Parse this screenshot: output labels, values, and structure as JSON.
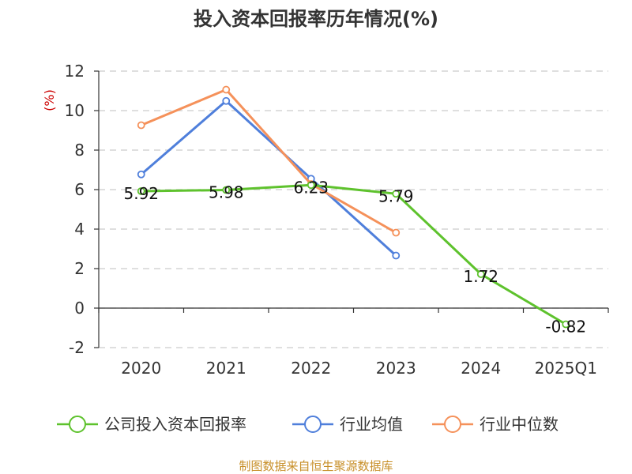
{
  "chart_data": {
    "type": "line",
    "title": "投入资本回报率历年情况(%)",
    "ylabel": "(%)",
    "categories": [
      "2020",
      "2021",
      "2022",
      "2023",
      "2024",
      "2025Q1"
    ],
    "yticks": [
      "12",
      "10",
      "8",
      "6",
      "4",
      "2",
      "0",
      "-2"
    ],
    "ylim": [
      -2,
      12
    ],
    "grid": true,
    "legend_position": "bottom",
    "series": [
      {
        "name": "公司投入资本回报率",
        "color": "#5ec22d",
        "values": [
          5.92,
          5.98,
          6.23,
          5.79,
          1.72,
          -0.82
        ],
        "labels": [
          "5.92",
          "5.98",
          "6.23",
          "5.79",
          "1.72",
          "-0.82"
        ]
      },
      {
        "name": "行业均值",
        "color": "#4f7fdb",
        "values": [
          6.77,
          10.49,
          6.55,
          2.66,
          null,
          null
        ]
      },
      {
        "name": "行业中位数",
        "color": "#f5915a",
        "values": [
          9.26,
          11.06,
          6.28,
          3.82,
          null,
          null
        ]
      }
    ],
    "source": "制图数据来自恒生聚源数据库"
  }
}
